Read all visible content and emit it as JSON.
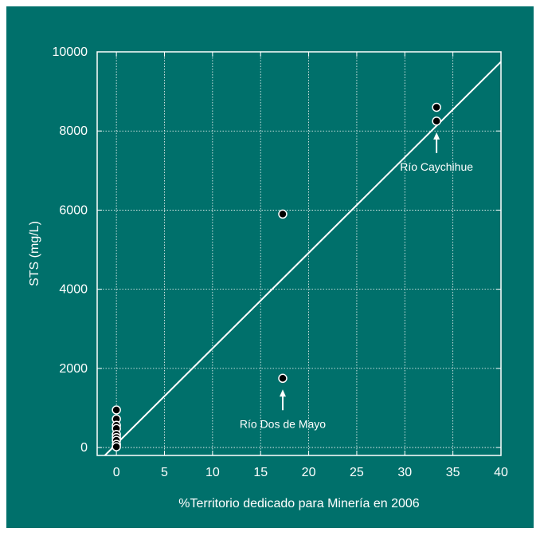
{
  "colors": {
    "background": "#00706b",
    "foreground": "#ffffff",
    "marker_fill": "#000000",
    "grid": "#ffffff"
  },
  "chart_data": {
    "type": "scatter",
    "title": "",
    "xlabel": "%Territorio dedicado para Minería en 2006",
    "ylabel": "STS (mg/L)",
    "xlim": [
      -2,
      40
    ],
    "ylim": [
      -200,
      10000
    ],
    "xticks": [
      0,
      5,
      10,
      15,
      20,
      25,
      30,
      35,
      40
    ],
    "yticks": [
      0,
      2000,
      4000,
      6000,
      8000,
      10000
    ],
    "grid": true,
    "points": [
      {
        "x": 0,
        "y": 950
      },
      {
        "x": 0,
        "y": 720
      },
      {
        "x": 0,
        "y": 560
      },
      {
        "x": 0,
        "y": 480
      },
      {
        "x": 0,
        "y": 330
      },
      {
        "x": 0,
        "y": 250
      },
      {
        "x": 0,
        "y": 180
      },
      {
        "x": 0,
        "y": 80
      },
      {
        "x": 0,
        "y": 20
      },
      {
        "x": 17.3,
        "y": 5900
      },
      {
        "x": 17.3,
        "y": 1750
      },
      {
        "x": 33.3,
        "y": 8600
      },
      {
        "x": 33.3,
        "y": 8250
      }
    ],
    "fit_line": {
      "from": {
        "x": -1.2,
        "y": -200
      },
      "to": {
        "x": 40,
        "y": 9750
      }
    },
    "annotations": [
      {
        "text": "Río Caychihue",
        "x": 33.3,
        "y": 8250
      },
      {
        "text": "Río Dos de Mayo",
        "x": 17.3,
        "y": 1750
      }
    ]
  }
}
